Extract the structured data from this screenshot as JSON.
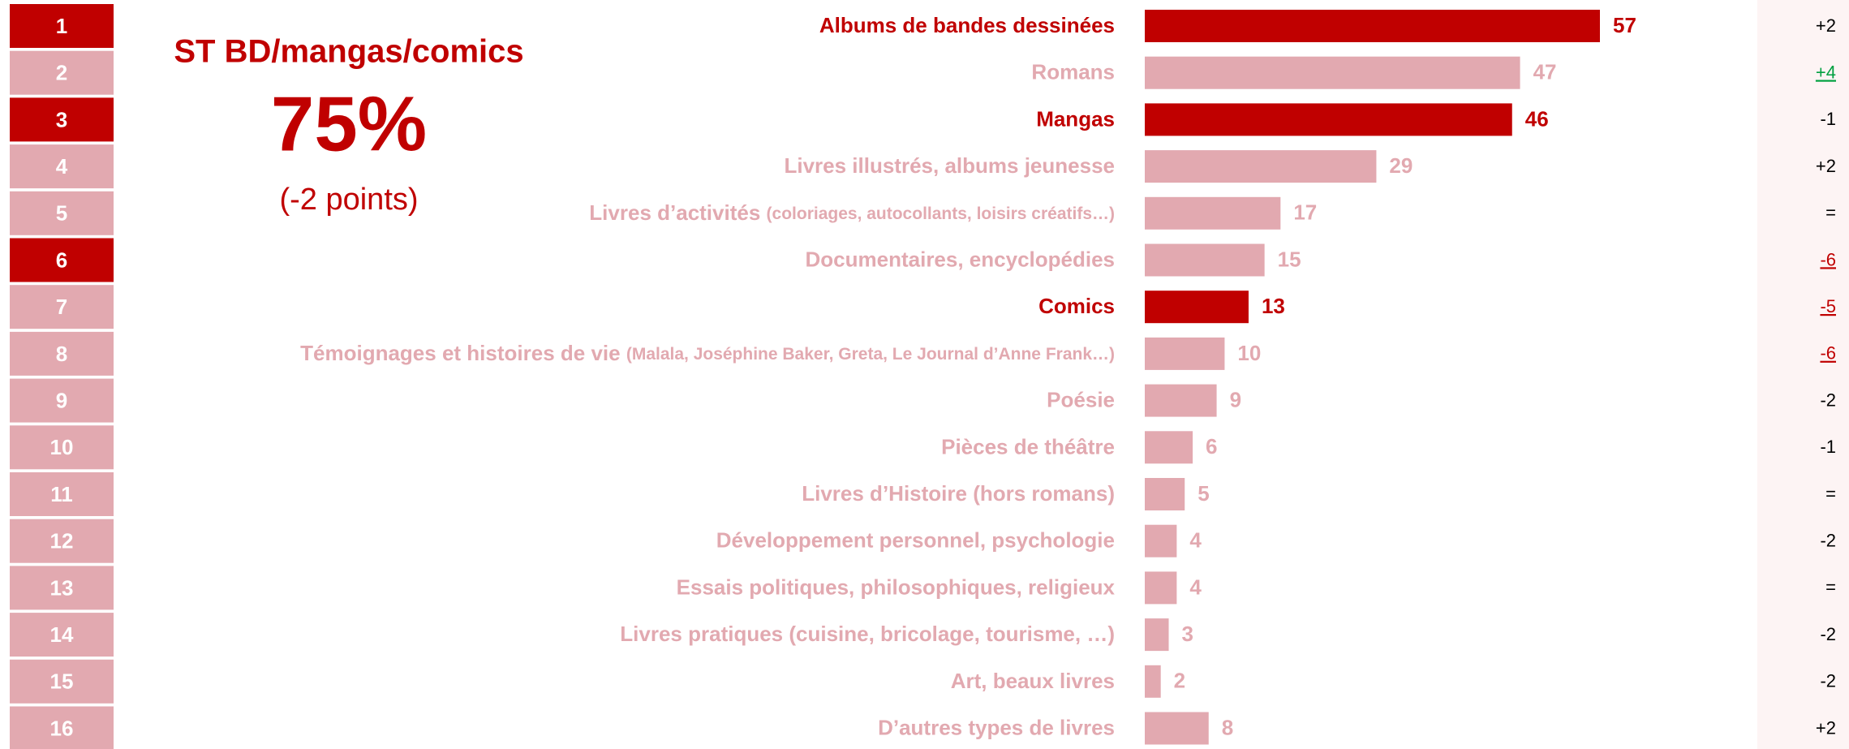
{
  "chart_data": {
    "type": "bar",
    "orientation": "horizontal",
    "categories": [
      "Albums de bandes dessinées",
      "Romans",
      "Mangas",
      "Livres illustrés, albums jeunesse",
      "Livres d’activités",
      "Documentaires, encyclopédies",
      "Comics",
      "Témoignages et histoires de vie",
      "Poésie",
      "Pièces de théâtre",
      "Livres d’Histoire (hors romans)",
      "Développement personnel, psychologie",
      "Essais politiques, philosophiques, religieux",
      "Livres pratiques (cuisine, bricolage, tourisme, …)",
      "Art, beaux livres",
      "D’autres types de livres"
    ],
    "category_details": [
      null,
      null,
      null,
      null,
      "(coloriages, autocollants, loisirs créatifs…)",
      null,
      null,
      "(Malala, Joséphine Baker, Greta, Le Journal d’Anne Frank…)",
      null,
      null,
      null,
      null,
      null,
      null,
      null,
      null
    ],
    "values": [
      57,
      47,
      46,
      29,
      17,
      15,
      13,
      10,
      9,
      6,
      5,
      4,
      4,
      3,
      2,
      8
    ],
    "highlight": [
      true,
      false,
      true,
      false,
      false,
      false,
      true,
      false,
      false,
      false,
      false,
      false,
      false,
      false,
      false,
      false
    ],
    "ranks": [
      1,
      2,
      3,
      4,
      5,
      6,
      7,
      8,
      9,
      10,
      11,
      12,
      13,
      14,
      15,
      16
    ],
    "rank_highlight": [
      true,
      false,
      true,
      false,
      false,
      true,
      false,
      false,
      false,
      false,
      false,
      false,
      false,
      false,
      false,
      false
    ],
    "changes": [
      2,
      4,
      -1,
      2,
      0,
      -6,
      -5,
      -6,
      -2,
      -1,
      0,
      -2,
      0,
      -2,
      -2,
      2
    ],
    "change_labels": [
      "+2",
      "+4",
      "-1",
      "+2",
      "=",
      "-6",
      "-5",
      "-6",
      "-2",
      "-1",
      "=",
      "-2",
      "=",
      "-2",
      "-2",
      "+2"
    ],
    "change_significant": [
      false,
      true,
      false,
      false,
      false,
      true,
      true,
      true,
      false,
      false,
      false,
      false,
      false,
      false,
      false,
      false
    ],
    "color": "#e2a9b0",
    "highlight_color": "#c00000",
    "up_color": "#00a040",
    "down_color": "#c00000",
    "neutral_color": "#000000",
    "summary": {
      "title": "ST BD/mangas/comics",
      "value": 75,
      "value_label": "75%",
      "note": "(-2 points)"
    }
  }
}
